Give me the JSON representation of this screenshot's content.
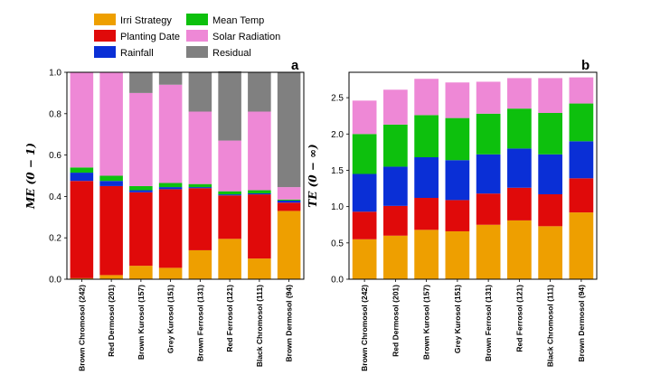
{
  "legend": [
    {
      "name": "Irri Strategy",
      "color": "#ee9f00"
    },
    {
      "name": "Planting Date",
      "color": "#e00a0a"
    },
    {
      "name": "Rainfall",
      "color": "#0a2fd6"
    },
    {
      "name": "Mean Temp",
      "color": "#0dc00d"
    },
    {
      "name": "Solar Radiation",
      "color": "#ee88d6"
    },
    {
      "name": "Residual",
      "color": "#808080"
    }
  ],
  "chart_data": [
    {
      "type": "bar",
      "stacked": true,
      "panel_letter": "a",
      "ylabel": "ME (0 − 1)",
      "ylim": [
        0,
        1.0
      ],
      "yticks": [
        "0.0",
        "0.2",
        "0.4",
        "0.6",
        "0.8",
        "1.0"
      ],
      "categories": [
        "Brown Chromosol (242)",
        "Red Dermosol (201)",
        "Brown Kurosol (157)",
        "Grey Kurosol (151)",
        "Brown Ferrosol (131)",
        "Red Ferrosol (121)",
        "Black Chromosol (111)",
        "Brown Dermosol (94)"
      ],
      "series": [
        {
          "name": "Irri Strategy",
          "values": [
            0.005,
            0.02,
            0.065,
            0.055,
            0.14,
            0.195,
            0.1,
            0.33
          ]
        },
        {
          "name": "Planting Date",
          "values": [
            0.47,
            0.43,
            0.355,
            0.38,
            0.3,
            0.21,
            0.31,
            0.04
          ]
        },
        {
          "name": "Rainfall",
          "values": [
            0.04,
            0.025,
            0.01,
            0.01,
            0.005,
            0.005,
            0.005,
            0.01
          ]
        },
        {
          "name": "Mean Temp",
          "values": [
            0.025,
            0.025,
            0.02,
            0.02,
            0.015,
            0.015,
            0.015,
            0.005
          ]
        },
        {
          "name": "Solar Radiation",
          "values": [
            0.46,
            0.5,
            0.45,
            0.475,
            0.35,
            0.245,
            0.38,
            0.06
          ]
        },
        {
          "name": "Residual",
          "values": [
            0.0,
            0.0,
            0.1,
            0.06,
            0.19,
            0.335,
            0.19,
            0.555
          ]
        }
      ]
    },
    {
      "type": "bar",
      "stacked": true,
      "panel_letter": "b",
      "ylabel": "TE (0 − ∞)",
      "ylim": [
        0,
        2.85
      ],
      "yticks": [
        "0.0",
        "0.5",
        "1.0",
        "1.5",
        "2.0",
        "2.5"
      ],
      "categories": [
        "Brown Chromosol (242)",
        "Red Dermosol (201)",
        "Brown Kurosol (157)",
        "Grey Kurosol (151)",
        "Brown Ferrosol (131)",
        "Red Ferrosol (121)",
        "Black Chromosol (111)",
        "Brown Dermosol (94)"
      ],
      "series": [
        {
          "name": "Irri Strategy",
          "values": [
            0.55,
            0.6,
            0.68,
            0.66,
            0.75,
            0.81,
            0.73,
            0.92
          ]
        },
        {
          "name": "Planting Date",
          "values": [
            0.38,
            0.41,
            0.44,
            0.43,
            0.43,
            0.45,
            0.44,
            0.47
          ]
        },
        {
          "name": "Rainfall",
          "values": [
            0.52,
            0.54,
            0.56,
            0.55,
            0.54,
            0.54,
            0.55,
            0.51
          ]
        },
        {
          "name": "Mean Temp",
          "values": [
            0.55,
            0.58,
            0.58,
            0.58,
            0.56,
            0.55,
            0.57,
            0.52
          ]
        },
        {
          "name": "Solar Radiation",
          "values": [
            0.46,
            0.48,
            0.5,
            0.49,
            0.44,
            0.42,
            0.48,
            0.36
          ]
        },
        {
          "name": "Residual",
          "values": [
            0,
            0,
            0,
            0,
            0,
            0,
            0,
            0
          ]
        }
      ]
    }
  ]
}
